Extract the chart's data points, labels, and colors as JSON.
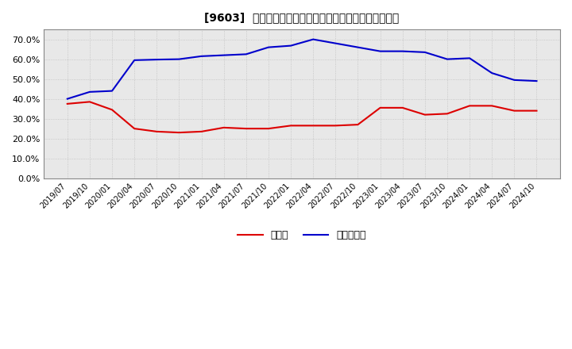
{
  "title": "[9603]  現預金、有利子負債の総資産に対する比率の推移",
  "x_labels": [
    "2019/07",
    "2019/10",
    "2020/01",
    "2020/04",
    "2020/07",
    "2020/10",
    "2021/01",
    "2021/04",
    "2021/07",
    "2021/10",
    "2022/01",
    "2022/04",
    "2022/07",
    "2022/10",
    "2023/01",
    "2023/04",
    "2023/07",
    "2023/10",
    "2024/01",
    "2024/04",
    "2024/07",
    "2024/10"
  ],
  "cash": [
    0.375,
    0.385,
    0.345,
    0.25,
    0.235,
    0.23,
    0.235,
    0.255,
    0.25,
    0.25,
    0.265,
    0.265,
    0.265,
    0.27,
    0.355,
    0.355,
    0.32,
    0.325,
    0.365,
    0.365,
    0.34,
    0.34
  ],
  "interest_bearing_debt": [
    0.4,
    0.435,
    0.44,
    0.595,
    0.598,
    0.6,
    0.615,
    0.62,
    0.625,
    0.66,
    0.668,
    0.7,
    0.68,
    0.66,
    0.64,
    0.64,
    0.635,
    0.6,
    0.605,
    0.53,
    0.495,
    0.49
  ],
  "cash_color": "#dd0000",
  "debt_color": "#0000cc",
  "background_color": "#ffffff",
  "plot_bg_color": "#e8e8e8",
  "grid_color": "#bbbbbb",
  "border_color": "#888888",
  "ylim": [
    0.0,
    0.75
  ],
  "yticks": [
    0.0,
    0.1,
    0.2,
    0.3,
    0.4,
    0.5,
    0.6,
    0.7
  ],
  "legend_cash": "現預金",
  "legend_debt": "有利子負債"
}
